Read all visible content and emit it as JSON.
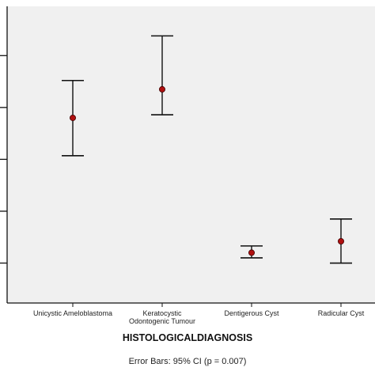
{
  "chart_data": {
    "type": "errorbar",
    "categories": [
      [
        "Unicystic Ameloblastoma"
      ],
      [
        "Keratocystic",
        "Odontogenic Tumour"
      ],
      [
        "Dentigerous Cyst"
      ],
      [
        "Radicular Cyst"
      ]
    ],
    "means": [
      3.8,
      4.35,
      1.2,
      1.42
    ],
    "ci_lower": [
      3.07,
      3.86,
      1.1,
      1.0
    ],
    "ci_upper": [
      4.52,
      5.38,
      1.33,
      1.85
    ],
    "xlabel": "HISTOLOGICALDIAGNOSIS",
    "ylabel": "",
    "y_ticks": [
      1,
      2,
      3,
      4,
      5
    ],
    "ylim": [
      0.23,
      5.95
    ],
    "grid": false,
    "footnote": "Error Bars: 95% CI (p = 0.007)",
    "colors": {
      "plot_background": "#f0f0f0",
      "marker_fill": "#b01010",
      "marker_stroke": "#400000",
      "bar_color": "#111111"
    }
  }
}
